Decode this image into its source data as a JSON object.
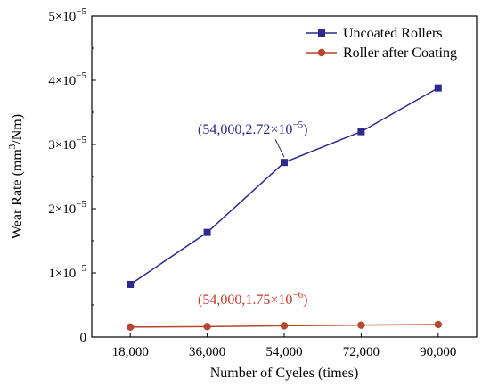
{
  "chart_data": {
    "type": "line",
    "title": "",
    "xlabel": "Number of Cyeles (times)",
    "ylabel_parts": {
      "main": "Wear Rate (mm",
      "sup": "3",
      "rest": "/Nm)"
    },
    "x": [
      18000,
      36000,
      54000,
      72000,
      90000
    ],
    "x_tick_labels": [
      "18,000",
      "36,000",
      "54,000",
      "72,000",
      "90,000"
    ],
    "ylim": [
      0,
      5e-05
    ],
    "y_ticks": [
      {
        "value": 0,
        "base": "0",
        "exp": ""
      },
      {
        "value": 1e-05,
        "base": "1×10",
        "exp": "−5"
      },
      {
        "value": 2e-05,
        "base": "2×10",
        "exp": "−5"
      },
      {
        "value": 3e-05,
        "base": "3×10",
        "exp": "−5"
      },
      {
        "value": 4e-05,
        "base": "4×10",
        "exp": "−5"
      },
      {
        "value": 5e-05,
        "base": "5×10",
        "exp": "−5"
      }
    ],
    "series": [
      {
        "name": "Uncoated Rollers",
        "color": "#2e2a8c",
        "marker": "square",
        "values": [
          8.2e-06,
          1.63e-05,
          2.72e-05,
          3.2e-05,
          3.88e-05
        ]
      },
      {
        "name": "Roller after Coating",
        "color": "#b5472c",
        "marker": "circle",
        "values": [
          1.55e-06,
          1.62e-06,
          1.75e-06,
          1.85e-06,
          1.95e-06
        ]
      }
    ],
    "annotations": [
      {
        "series": 0,
        "point": 2,
        "text": "(54,000,2.72×10",
        "exp": "−5",
        "close": ")",
        "color": "#2e2a8c"
      },
      {
        "series": 1,
        "point": 2,
        "text": "(54,000,1.75×10",
        "exp": "−6",
        "close": ")",
        "color": "#c0392b"
      }
    ],
    "legend": "top-right",
    "grid": false
  }
}
